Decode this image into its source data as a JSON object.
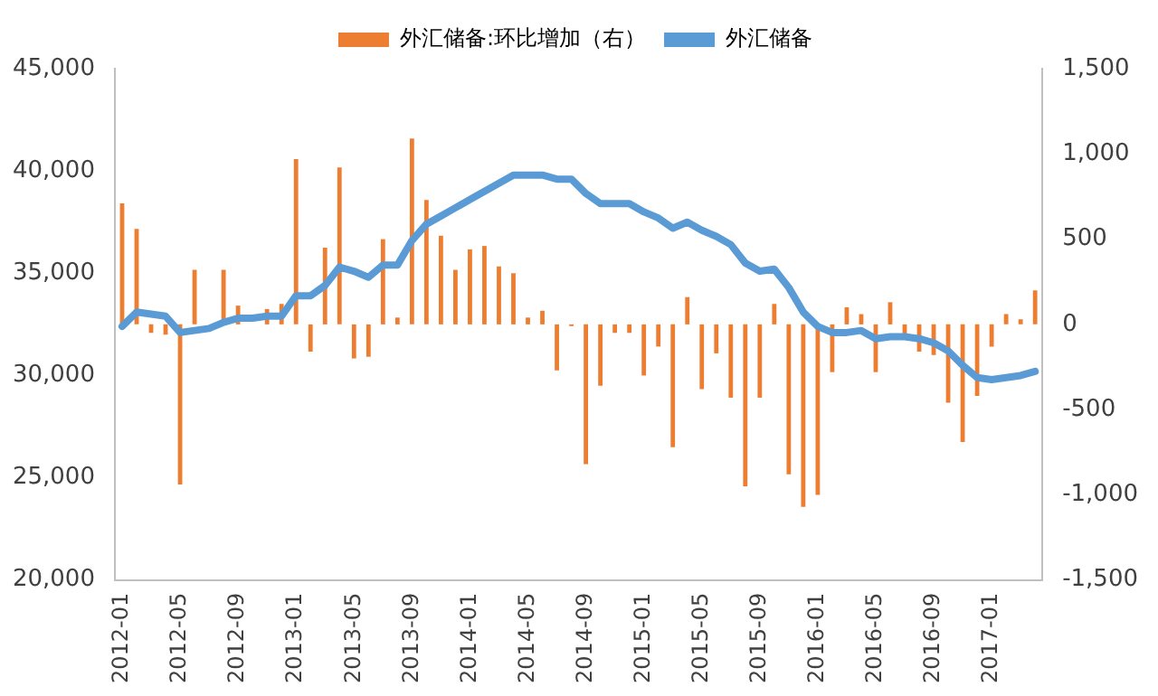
{
  "chart_data": {
    "type": "bar",
    "categories": [
      "2012-01",
      null,
      null,
      null,
      "2012-05",
      null,
      null,
      null,
      "2012-09",
      null,
      null,
      null,
      "2013-01",
      null,
      null,
      null,
      "2013-05",
      null,
      null,
      null,
      "2013-09",
      null,
      null,
      null,
      "2014-01",
      null,
      null,
      null,
      "2014-05",
      null,
      null,
      null,
      "2014-09",
      null,
      null,
      null,
      "2015-01",
      null,
      null,
      null,
      "2015-05",
      null,
      null,
      null,
      "2015-09",
      null,
      null,
      null,
      "2016-01",
      null,
      null,
      null,
      "2016-05",
      null,
      null,
      null,
      "2016-09",
      null,
      null,
      null,
      "2017-01",
      null,
      null,
      null
    ],
    "series": [
      {
        "name": "外汇储备:环比增加（右）",
        "axis": "y2",
        "color": "#ed7d31",
        "values": [
          710,
          560,
          -50,
          -60,
          -940,
          320,
          null,
          320,
          110,
          null,
          90,
          120,
          970,
          -160,
          450,
          920,
          -200,
          -190,
          500,
          40,
          1090,
          730,
          520,
          320,
          440,
          460,
          340,
          300,
          40,
          80,
          -270,
          -10,
          -820,
          -360,
          -50,
          -50,
          -300,
          -130,
          -720,
          160,
          -380,
          -170,
          -430,
          -950,
          -430,
          120,
          -880,
          -1070,
          -1000,
          -280,
          100,
          60,
          -280,
          130,
          -60,
          -160,
          -180,
          -460,
          -690,
          -420,
          -130,
          60,
          30,
          200
        ]
      },
      {
        "name": "外汇储备",
        "type": "line",
        "color": "#5b9bd5",
        "values": [
          32400,
          33100,
          33000,
          32900,
          32100,
          32200,
          32300,
          32600,
          32800,
          32800,
          32900,
          32900,
          33900,
          33900,
          34400,
          35300,
          35100,
          34800,
          35400,
          35400,
          36600,
          37400,
          37800,
          38200,
          38600,
          39000,
          39400,
          39800,
          39800,
          39800,
          39600,
          39600,
          38900,
          38400,
          38400,
          38400,
          38000,
          37700,
          37200,
          37500,
          37100,
          36800,
          36400,
          35500,
          35100,
          35200,
          34300,
          33100,
          32400,
          32100,
          32100,
          32200,
          31800,
          31900,
          31900,
          31800,
          31600,
          31200,
          30500,
          29900,
          29800,
          29900,
          30000,
          30200
        ]
      }
    ],
    "ylim": [
      20000,
      45000
    ],
    "yticks": [
      {
        "value": 20000,
        "label": "20,000"
      },
      {
        "value": 25000,
        "label": "25,000"
      },
      {
        "value": 30000,
        "label": "30,000"
      },
      {
        "value": 35000,
        "label": "35,000"
      },
      {
        "value": 40000,
        "label": "40,000"
      },
      {
        "value": 45000,
        "label": "45,000"
      }
    ],
    "y2lim": [
      -1500,
      1500
    ],
    "y2ticks": [
      {
        "value": -1500,
        "label": "-1,500"
      },
      {
        "value": -1000,
        "label": "-1,000"
      },
      {
        "value": -500,
        "label": "-500"
      },
      0,
      500,
      {
        "value": 1000,
        "label": "1,000"
      },
      {
        "value": 1500,
        "label": "1,500"
      }
    ],
    "legend": "top",
    "grid": false,
    "marker": "none"
  }
}
